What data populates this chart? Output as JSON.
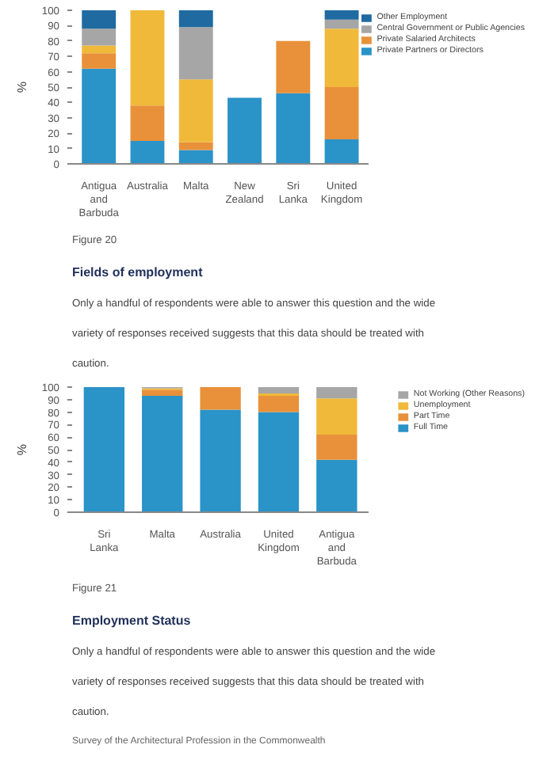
{
  "chart_data": [
    {
      "type": "bar",
      "stacked": true,
      "title": "Fields of employment",
      "subtitle": "Only a handful of respondents were able to answer this question and the wide variety of responses received suggests that this data should be treated with caution.",
      "annotations": [
        "Figure 20"
      ],
      "ylabel": "%",
      "ylim": [
        0,
        100
      ],
      "yticks": [
        0,
        10,
        20,
        30,
        40,
        50,
        60,
        70,
        80,
        90,
        100
      ],
      "grid": false,
      "legend": "right",
      "categories": [
        "Antigua and Barbuda",
        "Australia",
        "Malta",
        "New Zealand",
        "Sri Lanka",
        "United Kingdom"
      ],
      "series": [
        {
          "name": "Private Partners or Directors",
          "color": "#2a93c8",
          "values": [
            62,
            15,
            9,
            43,
            46,
            16
          ]
        },
        {
          "name": "Private Salaried Architects",
          "color": "#e8913a",
          "values": [
            10,
            23,
            5,
            0,
            34,
            34
          ]
        },
        {
          "color": "#f0b93a",
          "values": [
            5,
            62,
            41,
            0,
            0,
            38
          ]
        },
        {
          "name": "Central Government or Public Agencies",
          "color": "#a6a6a6",
          "values": [
            11,
            0,
            34,
            0,
            0,
            6
          ]
        },
        {
          "name": "Other Employment",
          "color": "#1f6aa0",
          "values": [
            12,
            0,
            11,
            0,
            0,
            6
          ]
        }
      ]
    },
    {
      "type": "bar",
      "stacked": true,
      "title": "Employment Status",
      "subtitle": "Only a handful of respondents were able to answer this question and the wide variety of responses received suggests that this data should be treated with caution.",
      "annotations": [
        "Figure 21",
        "Survey of the Architectural Profession in the Commonwealth"
      ],
      "ylabel": "%",
      "ylim": [
        0,
        100
      ],
      "yticks": [
        0,
        10,
        20,
        30,
        40,
        50,
        60,
        70,
        80,
        90,
        100
      ],
      "grid": false,
      "legend": "right",
      "categories": [
        "Sri Lanka",
        "Malta",
        "Australia",
        "United Kingdom",
        "Antigua and Barbuda"
      ],
      "series": [
        {
          "name": "Full Time",
          "color": "#2a93c8",
          "values": [
            100,
            93,
            82,
            80,
            42
          ]
        },
        {
          "name": "Part Time",
          "color": "#e8913a",
          "values": [
            0,
            5,
            18,
            13,
            20
          ]
        },
        {
          "name": "Unemployment",
          "color": "#f0b93a",
          "values": [
            0,
            1,
            0,
            2,
            29
          ]
        },
        {
          "name": "Not Working (Other Reasons)",
          "color": "#a6a6a6",
          "values": [
            0,
            1,
            0,
            5,
            9
          ]
        }
      ]
    }
  ]
}
